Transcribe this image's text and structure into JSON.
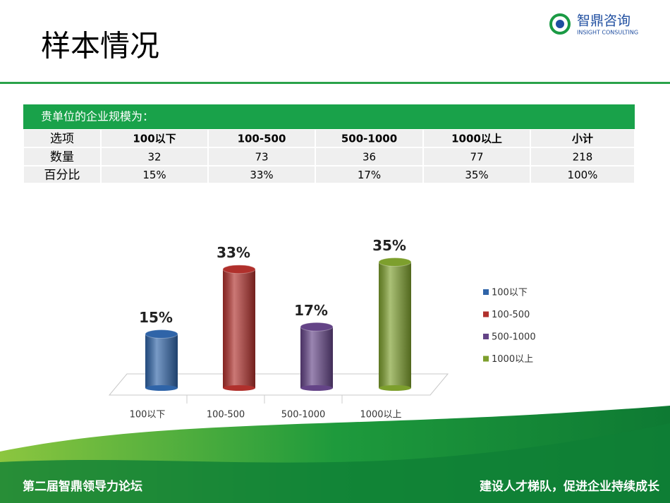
{
  "header": {
    "title": "样本情况",
    "logo_name": "智鼎咨询",
    "logo_sub": "INSIGHT CONSULTING"
  },
  "table": {
    "caption": "贵单位的企业规模为：",
    "rows": [
      [
        "选项",
        "100以下",
        "100-500",
        "500-1000",
        "1000以上",
        "小计"
      ],
      [
        "数量",
        32,
        73,
        36,
        77,
        218
      ],
      [
        "百分比",
        "15%",
        "33%",
        "17%",
        "35%",
        "100%"
      ]
    ]
  },
  "chart_data": {
    "type": "bar",
    "categories": [
      "100以下",
      "100-500",
      "500-1000",
      "1000以上"
    ],
    "values": [
      15,
      33,
      17,
      35
    ],
    "value_labels": [
      "15%",
      "33%",
      "17%",
      "35%"
    ],
    "colors": [
      "#2f64a8",
      "#b0302c",
      "#644487",
      "#7d9f2d"
    ],
    "legend": "right"
  },
  "footer": {
    "left": "第二届智鼎领导力论坛",
    "right": "建设人才梯队，促进企业持续成长"
  }
}
